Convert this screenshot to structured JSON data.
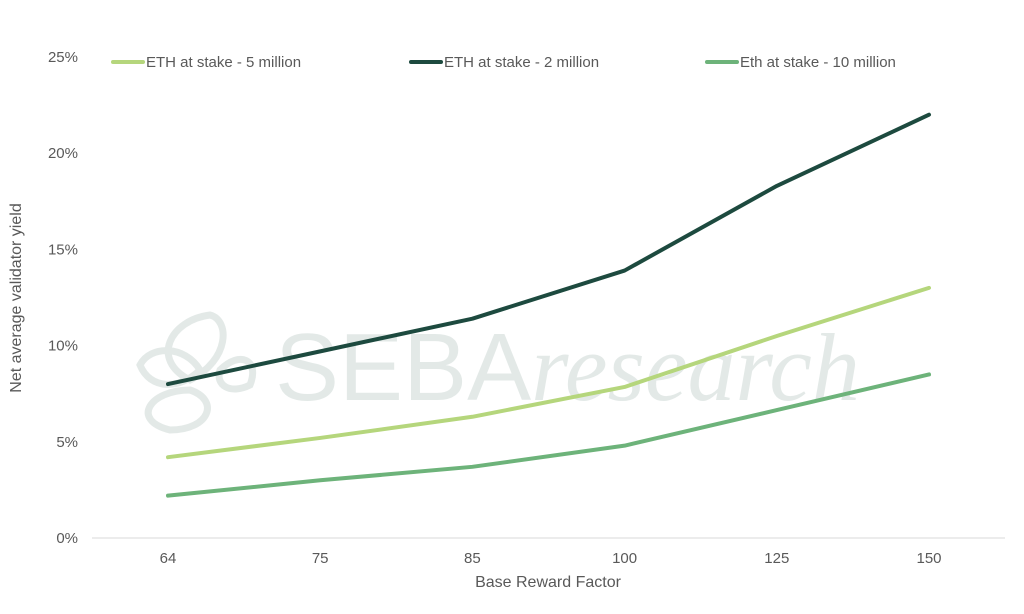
{
  "chart_data": {
    "type": "line",
    "title": "",
    "xlabel": "Base Reward Factor",
    "ylabel": "Net average validator yield",
    "categories": [
      "64",
      "75",
      "85",
      "100",
      "125",
      "150"
    ],
    "ylim": [
      0,
      25
    ],
    "yticks": [
      0,
      5,
      10,
      15,
      20,
      25
    ],
    "ytick_labels": [
      "0%",
      "5%",
      "10%",
      "15%",
      "20%",
      "25%"
    ],
    "grid": false,
    "legend_position": "top",
    "series": [
      {
        "name": "ETH at stake - 5 million",
        "color": "#b5d67c",
        "values": [
          4.2,
          5.2,
          6.3,
          7.85,
          10.5,
          13.0
        ]
      },
      {
        "name": "ETH at stake - 2 million",
        "color": "#1d4a3f",
        "values": [
          8.0,
          9.7,
          11.4,
          13.9,
          18.3,
          22.0
        ]
      },
      {
        "name": "Eth at stake - 10 million",
        "color": "#6db37a",
        "values": [
          2.2,
          3.0,
          3.7,
          4.8,
          6.65,
          8.5
        ]
      }
    ],
    "watermark": "SEBAresearch"
  }
}
